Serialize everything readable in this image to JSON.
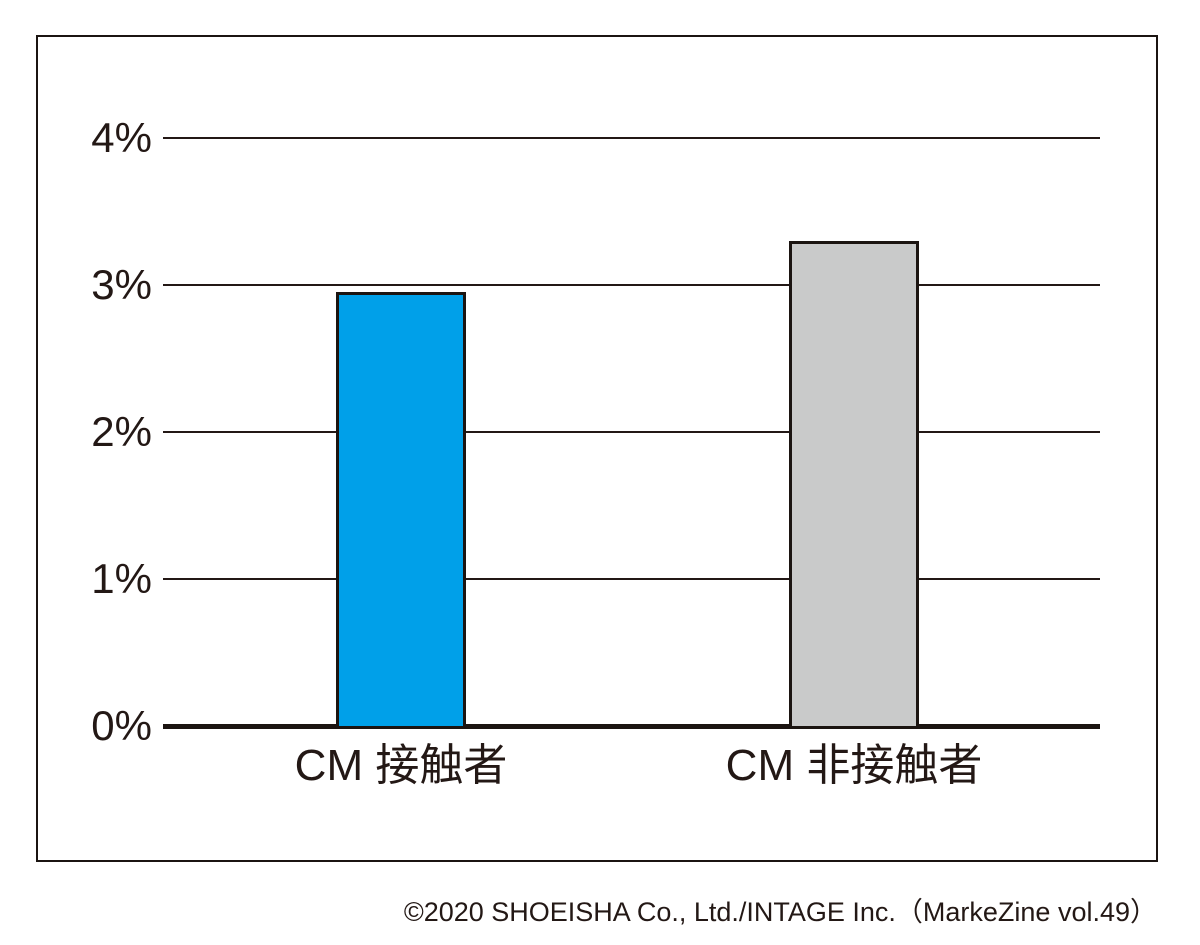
{
  "footer": {
    "copyright": "©2020 SHOEISHA Co., Ltd./INTAGE Inc.（MarkeZine vol.49）"
  },
  "chart_data": {
    "type": "bar",
    "categories": [
      "CM 接触者",
      "CM 非接触者"
    ],
    "values": [
      2.95,
      3.3
    ],
    "unit": "%",
    "ylim": [
      0,
      4
    ],
    "yticks": [
      {
        "value": 4,
        "label": "4%"
      },
      {
        "value": 3,
        "label": "3%"
      },
      {
        "value": 2,
        "label": "2%"
      },
      {
        "value": 1,
        "label": "1%"
      },
      {
        "value": 0,
        "label": "0%"
      }
    ],
    "series": [
      {
        "name": "CM 接触者",
        "value": 2.95,
        "color": "#00A0E9"
      },
      {
        "name": "CM 非接触者",
        "value": 3.3,
        "color": "#C9CACA"
      }
    ],
    "bar_colors": [
      "#00A0E9",
      "#C9CACA"
    ],
    "bar_border_color": "#1b1411",
    "gridline_color": "#231815",
    "axis_color": "#1b1411",
    "text_color": "#231815",
    "grid": true,
    "legend": "none"
  }
}
